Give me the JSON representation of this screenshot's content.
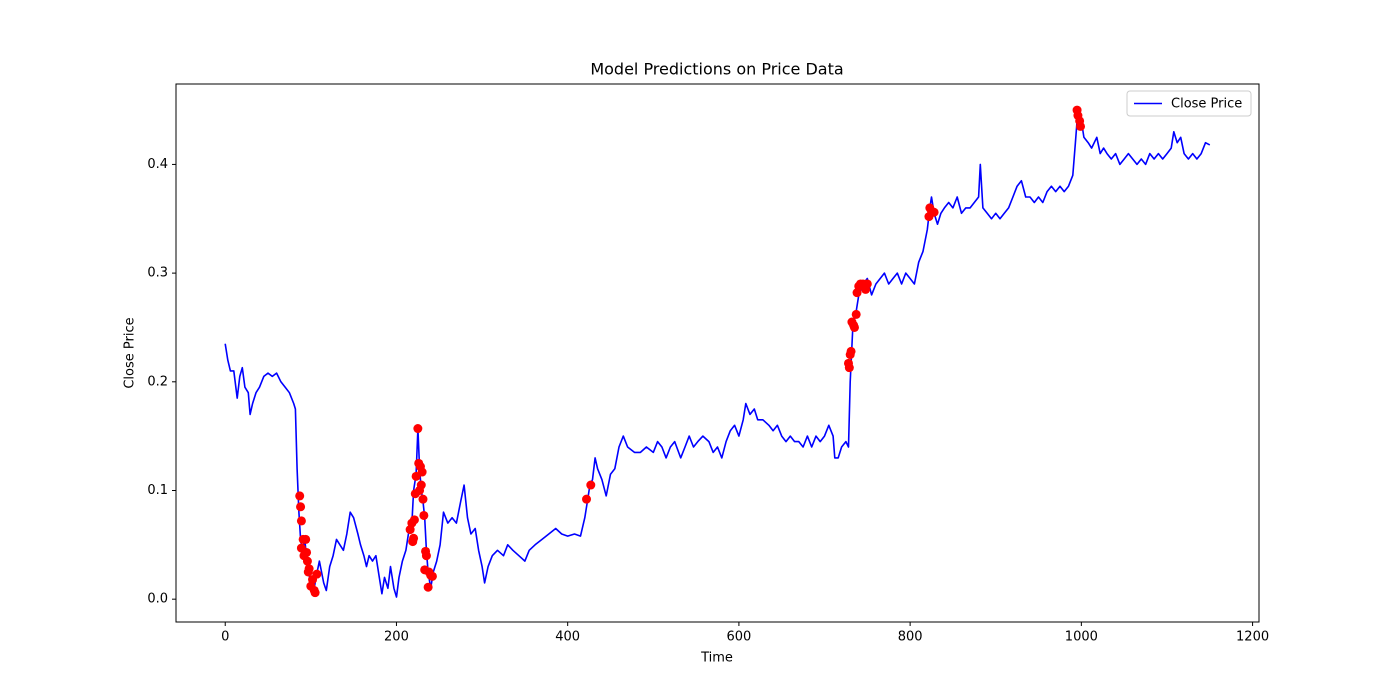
{
  "chart_data": {
    "type": "line",
    "title": "Model Predictions on Price Data",
    "xlabel": "Time",
    "ylabel": "Close Price",
    "xlim": [
      -57.5,
      1207.5
    ],
    "ylim": [
      -0.021,
      0.474
    ],
    "xticks": [
      0,
      200,
      400,
      600,
      800,
      1000,
      1200
    ],
    "yticks": [
      {
        "value": 0,
        "label": "0.0"
      },
      0.1,
      0.2,
      0.3,
      0.4
    ],
    "legend": "upper right",
    "series": [
      {
        "name": "Close Price",
        "color": "#0000ff",
        "x": [
          0,
          3,
          6,
          10,
          14,
          17,
          20,
          23,
          27,
          29,
          32,
          36,
          40,
          45,
          50,
          55,
          60,
          65,
          70,
          75,
          80,
          82,
          84,
          86,
          88,
          90,
          93,
          96,
          100,
          103,
          106,
          110,
          115,
          118,
          122,
          126,
          130,
          134,
          138,
          142,
          146,
          150,
          155,
          158,
          162,
          165,
          168,
          172,
          176,
          180,
          183,
          186,
          190,
          193,
          197,
          200,
          203,
          207,
          211,
          214,
          218,
          220,
          223,
          225,
          227,
          229,
          231,
          233,
          235,
          237,
          240,
          243,
          247,
          251,
          255,
          260,
          265,
          270,
          275,
          279,
          283,
          287,
          292,
          296,
          300,
          303,
          307,
          312,
          318,
          325,
          330,
          336,
          343,
          350,
          355,
          362,
          370,
          378,
          386,
          393,
          400,
          408,
          415,
          420,
          423,
          426,
          429,
          432,
          435,
          440,
          445,
          450,
          455,
          460,
          465,
          470,
          478,
          485,
          492,
          500,
          505,
          510,
          515,
          520,
          525,
          532,
          537,
          542,
          547,
          552,
          558,
          565,
          570,
          575,
          580,
          585,
          590,
          595,
          600,
          605,
          608,
          613,
          618,
          622,
          628,
          635,
          640,
          645,
          650,
          655,
          660,
          665,
          670,
          675,
          680,
          685,
          690,
          695,
          700,
          705,
          710,
          712,
          716,
          720,
          725,
          728,
          730,
          733,
          737,
          740,
          745,
          750,
          755,
          760,
          765,
          770,
          775,
          780,
          785,
          790,
          795,
          800,
          805,
          810,
          815,
          820,
          823,
          825,
          828,
          832,
          836,
          840,
          845,
          850,
          855,
          860,
          865,
          870,
          875,
          880,
          882,
          885,
          890,
          895,
          900,
          905,
          910,
          915,
          920,
          925,
          930,
          935,
          940,
          945,
          950,
          955,
          960,
          965,
          970,
          975,
          980,
          985,
          990,
          993,
          996,
          1000,
          1003,
          1008,
          1012,
          1018,
          1022,
          1026,
          1030,
          1035,
          1040,
          1045,
          1050,
          1055,
          1060,
          1065,
          1070,
          1075,
          1080,
          1085,
          1090,
          1095,
          1100,
          1105,
          1108,
          1112,
          1116,
          1120,
          1125,
          1130,
          1135,
          1140,
          1145,
          1150
        ],
        "values": [
          0.235,
          0.22,
          0.21,
          0.21,
          0.185,
          0.205,
          0.213,
          0.195,
          0.19,
          0.17,
          0.18,
          0.19,
          0.195,
          0.205,
          0.208,
          0.205,
          0.208,
          0.2,
          0.195,
          0.19,
          0.18,
          0.175,
          0.12,
          0.08,
          0.055,
          0.045,
          0.055,
          0.03,
          0.015,
          0.005,
          0.02,
          0.035,
          0.015,
          0.008,
          0.03,
          0.04,
          0.055,
          0.05,
          0.045,
          0.06,
          0.08,
          0.075,
          0.06,
          0.05,
          0.04,
          0.03,
          0.04,
          0.035,
          0.04,
          0.02,
          0.005,
          0.02,
          0.01,
          0.03,
          0.01,
          0.002,
          0.02,
          0.035,
          0.045,
          0.06,
          0.07,
          0.1,
          0.115,
          0.157,
          0.12,
          0.1,
          0.09,
          0.075,
          0.045,
          0.025,
          0.01,
          0.025,
          0.035,
          0.05,
          0.08,
          0.07,
          0.075,
          0.07,
          0.09,
          0.105,
          0.075,
          0.06,
          0.065,
          0.045,
          0.03,
          0.015,
          0.03,
          0.04,
          0.045,
          0.04,
          0.05,
          0.045,
          0.04,
          0.035,
          0.045,
          0.05,
          0.055,
          0.06,
          0.065,
          0.06,
          0.058,
          0.06,
          0.058,
          0.075,
          0.09,
          0.105,
          0.11,
          0.13,
          0.12,
          0.11,
          0.095,
          0.115,
          0.12,
          0.14,
          0.15,
          0.14,
          0.135,
          0.135,
          0.14,
          0.135,
          0.145,
          0.14,
          0.13,
          0.14,
          0.145,
          0.13,
          0.14,
          0.15,
          0.14,
          0.145,
          0.15,
          0.145,
          0.135,
          0.14,
          0.13,
          0.145,
          0.155,
          0.16,
          0.15,
          0.165,
          0.18,
          0.17,
          0.175,
          0.165,
          0.165,
          0.16,
          0.155,
          0.16,
          0.15,
          0.145,
          0.15,
          0.145,
          0.145,
          0.14,
          0.15,
          0.14,
          0.15,
          0.145,
          0.15,
          0.16,
          0.15,
          0.13,
          0.13,
          0.14,
          0.145,
          0.14,
          0.2,
          0.25,
          0.265,
          0.28,
          0.29,
          0.295,
          0.28,
          0.29,
          0.295,
          0.3,
          0.29,
          0.295,
          0.3,
          0.29,
          0.3,
          0.295,
          0.29,
          0.31,
          0.32,
          0.34,
          0.36,
          0.37,
          0.355,
          0.345,
          0.355,
          0.36,
          0.365,
          0.36,
          0.37,
          0.355,
          0.36,
          0.36,
          0.365,
          0.37,
          0.4,
          0.36,
          0.355,
          0.35,
          0.355,
          0.35,
          0.355,
          0.36,
          0.37,
          0.38,
          0.385,
          0.37,
          0.37,
          0.365,
          0.37,
          0.365,
          0.375,
          0.38,
          0.375,
          0.38,
          0.375,
          0.38,
          0.39,
          0.42,
          0.45,
          0.44,
          0.425,
          0.42,
          0.415,
          0.425,
          0.41,
          0.415,
          0.41,
          0.405,
          0.41,
          0.4,
          0.405,
          0.41,
          0.405,
          0.4,
          0.405,
          0.4,
          0.41,
          0.405,
          0.41,
          0.405,
          0.41,
          0.415,
          0.43,
          0.42,
          0.425,
          0.41,
          0.405,
          0.41,
          0.405,
          0.41,
          0.42,
          0.418
        ]
      }
    ],
    "markers": {
      "color": "#ff0000",
      "x": [
        87,
        88,
        89,
        91,
        89,
        92,
        94,
        95,
        96,
        97,
        98,
        100,
        102,
        104,
        105,
        107,
        216,
        218,
        219,
        220,
        221,
        222,
        223,
        225,
        226,
        227,
        228,
        229,
        230,
        231,
        232,
        233,
        234,
        235,
        237,
        238,
        240,
        242,
        422,
        427,
        728,
        729,
        730,
        731,
        732,
        734,
        735,
        737,
        738,
        740,
        742,
        745,
        748,
        750,
        822,
        823,
        825,
        828,
        995,
        996,
        998,
        999
      ],
      "values": [
        0.095,
        0.085,
        0.072,
        0.055,
        0.047,
        0.04,
        0.055,
        0.043,
        0.035,
        0.025,
        0.028,
        0.012,
        0.018,
        0.008,
        0.006,
        0.023,
        0.064,
        0.07,
        0.053,
        0.056,
        0.073,
        0.097,
        0.113,
        0.157,
        0.125,
        0.1,
        0.122,
        0.105,
        0.117,
        0.092,
        0.077,
        0.027,
        0.044,
        0.04,
        0.011,
        0.025,
        0.022,
        0.021,
        0.092,
        0.105,
        0.217,
        0.213,
        0.225,
        0.228,
        0.255,
        0.252,
        0.25,
        0.262,
        0.282,
        0.288,
        0.29,
        0.29,
        0.285,
        0.29,
        0.352,
        0.36,
        0.357,
        0.356,
        0.45,
        0.445,
        0.44,
        0.435
      ]
    }
  }
}
